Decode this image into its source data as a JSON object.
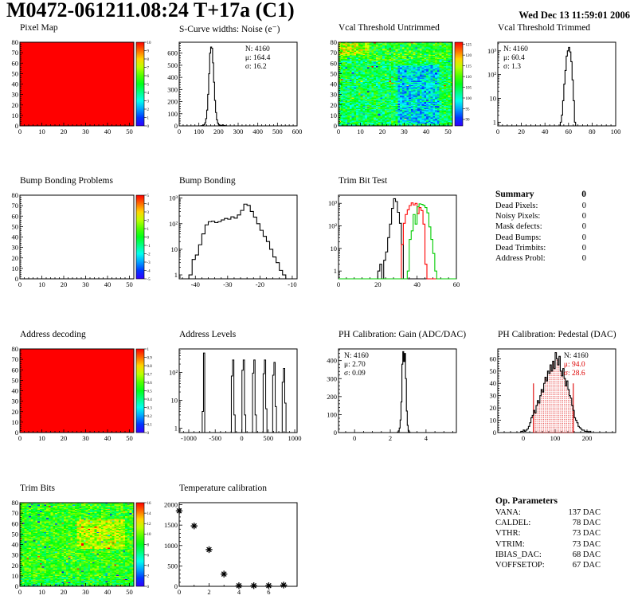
{
  "page": {
    "title": "M0472-061211.08:24 T+17a (C1)",
    "timestamp": "Wed Dec 13 11:59:01 2006"
  },
  "summary": {
    "heading": "Summary",
    "heading_value": "0",
    "rows": [
      {
        "label": "Dead Pixels:",
        "value": "0"
      },
      {
        "label": "Noisy Pixels:",
        "value": "0"
      },
      {
        "label": "Mask defects:",
        "value": "0"
      },
      {
        "label": "Dead Bumps:",
        "value": "0"
      },
      {
        "label": "Dead Trimbits:",
        "value": "0"
      },
      {
        "label": "Address Probl:",
        "value": "0"
      }
    ]
  },
  "op_parameters": {
    "heading": "Op. Parameters",
    "rows": [
      {
        "label": "VANA:",
        "value": "137 DAC"
      },
      {
        "label": "CALDEL:",
        "value": "78 DAC"
      },
      {
        "label": "VTHR:",
        "value": "73 DAC"
      },
      {
        "label": "VTRIM:",
        "value": "73 DAC"
      },
      {
        "label": "IBIAS_DAC:",
        "value": "68 DAC"
      },
      {
        "label": "VOFFSETOP:",
        "value": "67 DAC"
      }
    ]
  },
  "chart_data": [
    {
      "id": "pixel-map",
      "type": "heatmap",
      "title": "Pixel Map",
      "xlim": [
        0,
        52
      ],
      "ylim": [
        0,
        80
      ],
      "xticks": [
        0,
        10,
        20,
        30,
        40,
        50
      ],
      "yticks": [
        0,
        10,
        20,
        30,
        40,
        50,
        60,
        70,
        80
      ],
      "zlim": [
        0,
        10
      ],
      "colorbar_ticks": [
        0,
        1,
        2,
        3,
        4,
        5,
        6,
        7,
        8,
        9,
        10
      ],
      "fill": "uniform",
      "uniform_value": 10
    },
    {
      "id": "scurve-noise",
      "type": "hist",
      "title": "S-Curve widths: Noise (e⁻)",
      "yscale": "linear",
      "xlim": [
        0,
        600
      ],
      "ylim": [
        0,
        690
      ],
      "xticks": [
        0,
        100,
        200,
        300,
        400,
        500,
        600
      ],
      "yticks": [
        0,
        100,
        200,
        300,
        400,
        500,
        600
      ],
      "bins": {
        "x0": 110,
        "bw": 5,
        "y": [
          1,
          2,
          4,
          10,
          25,
          60,
          130,
          260,
          430,
          600,
          650,
          640,
          520,
          360,
          210,
          110,
          50,
          22,
          10,
          6,
          4,
          3,
          8,
          4,
          2,
          1
        ]
      },
      "stats": [
        "N: 4160",
        "μ: 164.4",
        "σ: 16.2"
      ],
      "stats_pos": "right"
    },
    {
      "id": "vcal-untrimmed",
      "type": "heatmap",
      "title": "Vcal Threshold Untrimmed",
      "xlim": [
        0,
        52
      ],
      "ylim": [
        0,
        80
      ],
      "xticks": [
        0,
        10,
        20,
        30,
        40,
        50
      ],
      "yticks": [
        0,
        10,
        20,
        30,
        40,
        50,
        60,
        70,
        80
      ],
      "zlim": [
        87,
        126
      ],
      "colorbar_ticks": [
        90,
        95,
        100,
        105,
        110,
        115,
        120,
        125
      ],
      "fill": "noise",
      "seed": 7,
      "base": 105,
      "noise_amp": 7,
      "regions": [
        {
          "x0": 27,
          "x1": 46,
          "y0": 2,
          "y1": 58,
          "offset": -7
        },
        {
          "x0": 0,
          "x1": 52,
          "y0": 62,
          "y1": 80,
          "offset": 3
        },
        {
          "x0": 0,
          "x1": 14,
          "y0": 68,
          "y1": 80,
          "offset": 6
        }
      ],
      "outliers": [
        {
          "prob": 0.004,
          "offset": 15
        },
        {
          "prob": 0.05,
          "offset": -5
        },
        {
          "prob": 0.004,
          "offset": -12
        }
      ]
    },
    {
      "id": "vcal-trimmed",
      "type": "hist",
      "title": "Vcal Threshold Trimmed",
      "yscale": "log",
      "xlim": [
        0,
        100
      ],
      "ylim": [
        0.7,
        2300
      ],
      "xticks": [
        0,
        20,
        40,
        60,
        80,
        100
      ],
      "ydecades": [
        1,
        10,
        100,
        1000
      ],
      "bins": {
        "x0": 53,
        "bw": 1,
        "y": [
          1,
          2,
          8,
          40,
          150,
          600,
          1000,
          1400,
          900,
          350,
          60,
          8,
          1
        ]
      },
      "stats": [
        "N: 4160",
        "μ: 60.4",
        "σ:  1.3"
      ],
      "stats_pos": "left"
    },
    {
      "id": "bump-problems",
      "type": "heatmap",
      "title": "Bump Bonding Problems",
      "xlim": [
        0,
        52
      ],
      "ylim": [
        0,
        80
      ],
      "xticks": [
        0,
        10,
        20,
        30,
        40,
        50
      ],
      "yticks": [
        0,
        10,
        20,
        30,
        40,
        50,
        60,
        70,
        80
      ],
      "zlim": [
        -5,
        5
      ],
      "colorbar_ticks": [
        -5,
        -4,
        -3,
        -2,
        -1,
        0,
        1,
        2,
        3,
        4,
        5
      ],
      "fill": "empty"
    },
    {
      "id": "bump-bonding",
      "type": "hist",
      "title": "Bump Bonding",
      "yscale": "log",
      "xlim": [
        -45,
        -8.5
      ],
      "ylim": [
        0.7,
        1300
      ],
      "xticks": [
        -40,
        -30,
        -20,
        -10
      ],
      "ydecades": [
        1,
        10,
        100,
        1000
      ],
      "bins": {
        "x0": -42,
        "bw": 1,
        "y": [
          1,
          4,
          6,
          15,
          40,
          90,
          120,
          125,
          110,
          120,
          140,
          160,
          150,
          185,
          165,
          220,
          330,
          580,
          520,
          300,
          180,
          100,
          55,
          32,
          20,
          10,
          5,
          3,
          1.5,
          1
        ]
      }
    },
    {
      "id": "trim-bit-test",
      "type": "multihist",
      "title": "Trim Bit Test",
      "yscale": "log",
      "xlim": [
        0,
        60
      ],
      "ylim": [
        0.45,
        2300
      ],
      "xticks": [
        0,
        20,
        40,
        60
      ],
      "ydecades": [
        1,
        10,
        100,
        1000
      ],
      "series": [
        {
          "color": "#000000",
          "x0": 20,
          "bw": 1,
          "y": [
            1,
            2,
            0,
            3,
            7,
            30,
            120,
            600,
            1600,
            1200,
            400,
            130,
            15
          ]
        },
        {
          "color": "#ff0000",
          "x0": 32,
          "bw": 1,
          "y": [
            15,
            130,
            320,
            520,
            800,
            1050,
            850,
            1000,
            350,
            650,
            480,
            120,
            2
          ],
          "base_to": 60
        },
        {
          "color": "#00cc00",
          "x0": 35,
          "bw": 1,
          "y": [
            1,
            25,
            60,
            320,
            120,
            700,
            950,
            900,
            820,
            650,
            380,
            90,
            25,
            6,
            1
          ],
          "base_from": 0,
          "base_to": 60
        }
      ]
    },
    {
      "id": "address-decoding",
      "type": "heatmap",
      "title": "Address decoding",
      "xlim": [
        0,
        52
      ],
      "ylim": [
        0,
        80
      ],
      "xticks": [
        0,
        10,
        20,
        30,
        40,
        50
      ],
      "yticks": [
        0,
        10,
        20,
        30,
        40,
        50,
        60,
        70,
        80
      ],
      "zlim": [
        0,
        1
      ],
      "colorbar_ticks": [
        0,
        0.1,
        0.2,
        0.3,
        0.4,
        0.5,
        0.6,
        0.7,
        0.8,
        0.9,
        1
      ],
      "fill": "uniform",
      "uniform_value": 1
    },
    {
      "id": "address-levels",
      "type": "spikes",
      "title": "Address Levels",
      "yscale": "log",
      "xlim": [
        -1180,
        1045
      ],
      "ylim": [
        0.7,
        700
      ],
      "xticks": [
        -1000,
        -500,
        0,
        500,
        1000
      ],
      "ydecades": [
        1,
        10,
        100
      ],
      "clusters": [
        [
          -710,
          500,
          4,
          0
        ],
        [
          -160,
          280,
          75,
          3
        ],
        [
          40,
          280,
          120,
          3
        ],
        [
          240,
          280,
          95,
          3
        ],
        [
          440,
          280,
          90,
          5
        ],
        [
          620,
          230,
          80,
          6
        ],
        [
          800,
          140,
          45,
          8
        ]
      ]
    },
    {
      "id": "ph-gain",
      "type": "hist",
      "title": "PH Calibration: Gain (ADC/DAC)",
      "yscale": "linear",
      "xlim": [
        -0.9,
        5.7
      ],
      "ylim": [
        0,
        465
      ],
      "xticks": [
        0,
        2,
        4
      ],
      "yticks": [
        0,
        100,
        200,
        300,
        400
      ],
      "xminor": 4,
      "bins": {
        "x0": 2.4,
        "bw": 0.05,
        "y": [
          3,
          10,
          25,
          70,
          170,
          380,
          450,
          395,
          440,
          300,
          120,
          40,
          12,
          3
        ]
      },
      "stats": [
        "N: 4160",
        "μ: 2.70",
        "σ: 0.09"
      ],
      "stats_pos": "left"
    },
    {
      "id": "ph-pedestal",
      "type": "hist",
      "title": "PH Calibration: Pedestal (DAC)",
      "yscale": "linear",
      "xlim": [
        -80,
        290
      ],
      "ylim": [
        0,
        68
      ],
      "xticks": [
        0,
        100,
        200
      ],
      "yticks": [
        0,
        10,
        20,
        30,
        40,
        50,
        60
      ],
      "bins": {
        "x0": -8,
        "bw": 4,
        "y": [
          1,
          1,
          2,
          1,
          2,
          3,
          5,
          8,
          12,
          14,
          18,
          16,
          22,
          26,
          24,
          30,
          35,
          33,
          40,
          45,
          42,
          50,
          48,
          55,
          50,
          58,
          52,
          65,
          60,
          55,
          62,
          50,
          46,
          52,
          44,
          38,
          42,
          35,
          30,
          28,
          22,
          18,
          12,
          10,
          8,
          5,
          4,
          3,
          2,
          2,
          1,
          1,
          1,
          0,
          1
        ]
      },
      "fit_region": {
        "x0": 32,
        "x1": 157,
        "line_h": 40,
        "color": "#dd0000"
      },
      "stats": [
        "N: 4160",
        "μ: 94.0",
        "σ: 28.6"
      ],
      "stats_colors": [
        "#000000",
        "#dd0000",
        "#dd0000"
      ],
      "stats_pos": "right"
    },
    {
      "id": "trim-bits",
      "type": "heatmap",
      "title": "Trim Bits",
      "xlim": [
        0,
        52
      ],
      "ylim": [
        0,
        80
      ],
      "xticks": [
        0,
        10,
        20,
        30,
        40,
        50
      ],
      "yticks": [
        0,
        10,
        20,
        30,
        40,
        50,
        60,
        70,
        80
      ],
      "zlim": [
        0,
        16
      ],
      "colorbar_ticks": [
        0,
        2,
        4,
        6,
        8,
        10,
        12,
        14,
        16
      ],
      "fill": "noise",
      "seed": 11,
      "base": 8.8,
      "noise_amp": 2.4,
      "regions": [
        {
          "x0": 26,
          "x1": 48,
          "y0": 36,
          "y1": 64,
          "offset": 2.2
        },
        {
          "x0": 0,
          "x1": 52,
          "y0": 0,
          "y1": 8,
          "offset": -0.8
        }
      ],
      "outliers": [
        {
          "prob": 0.012,
          "offset": 5
        },
        {
          "prob": 0.01,
          "offset": -7
        }
      ]
    },
    {
      "id": "temperature-calibration",
      "type": "scatter",
      "title": "Temperature calibration",
      "xlim": [
        0,
        7.9
      ],
      "ylim": [
        0,
        2050
      ],
      "xticks": [
        0,
        2,
        4,
        6
      ],
      "yticks": [
        0,
        500,
        1000,
        1500,
        2000
      ],
      "xminor": 2,
      "points": [
        [
          0,
          1850
        ],
        [
          1,
          1480
        ],
        [
          2,
          900
        ],
        [
          3,
          300
        ],
        [
          4,
          15
        ],
        [
          5,
          15
        ],
        [
          6,
          15
        ],
        [
          7,
          30
        ]
      ],
      "marker": "asterisk"
    }
  ]
}
